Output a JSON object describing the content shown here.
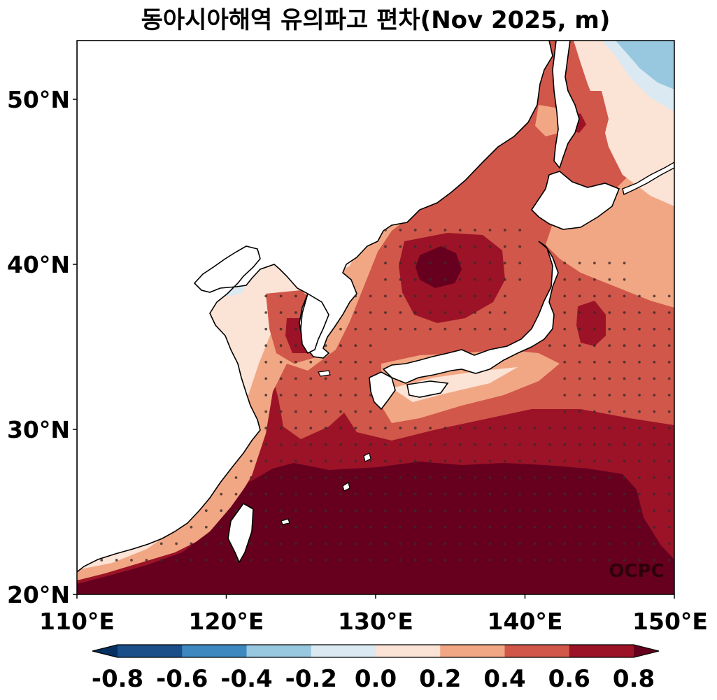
{
  "title": "동아시아해역 유의파고 편차(Nov 2025, m)",
  "credit": "OCPC",
  "map": {
    "lon_range": [
      110,
      150
    ],
    "lat_range": [
      20,
      53.5
    ],
    "lon_ticks": [
      "110°E",
      "120°E",
      "130°E",
      "140°E",
      "150°E"
    ],
    "lat_ticks": [
      "20°N",
      "30°N",
      "40°N",
      "50°N"
    ]
  },
  "colorbar": {
    "levels": [
      -0.8,
      -0.6,
      -0.4,
      -0.2,
      0.0,
      0.2,
      0.4,
      0.6,
      0.8
    ],
    "tick_labels": [
      "-0.8",
      "-0.6",
      "-0.4",
      "-0.2",
      "0.0",
      "0.2",
      "0.4",
      "0.6",
      "0.8"
    ],
    "colors": [
      "#053061",
      "#1a4f8a",
      "#3d88be",
      "#98c7e0",
      "#dbeaf2",
      "#fbe3d6",
      "#f2a784",
      "#d0574a",
      "#9c1327",
      "#67001f"
    ],
    "extend": "both"
  },
  "colors": {
    "land": "#ffffff",
    "coastline": "#000000",
    "stipple": "#3a2a2a"
  }
}
